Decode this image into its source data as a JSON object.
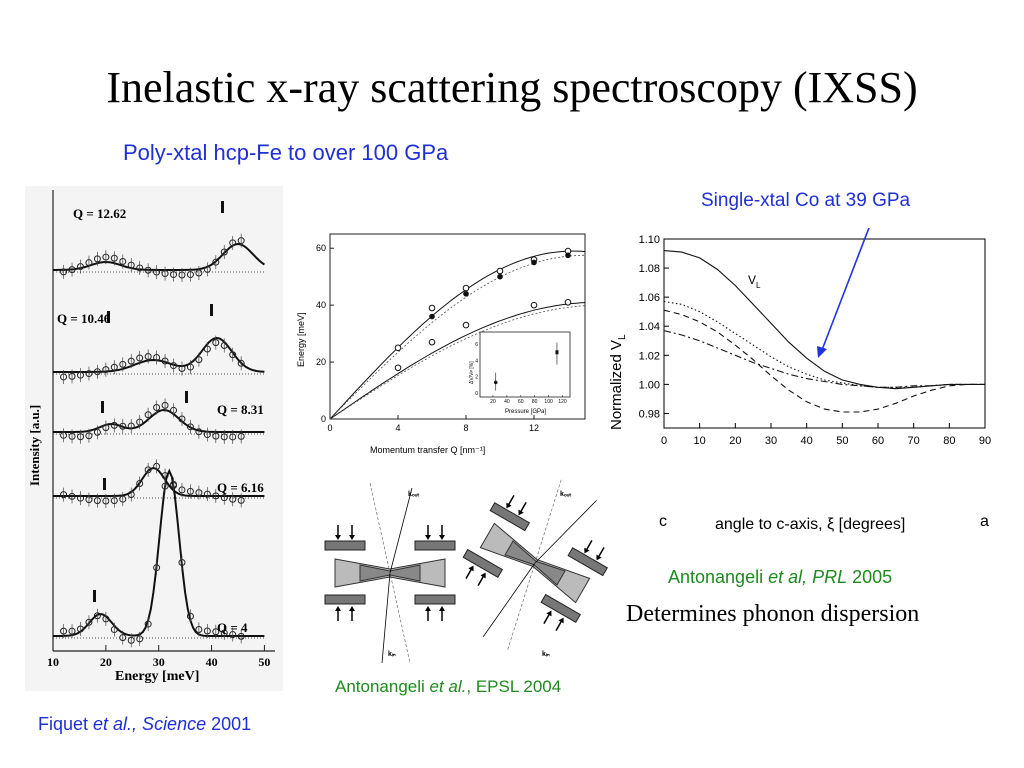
{
  "slide": {
    "title": "Inelastic x-ray scattering spectroscopy (IXSS)",
    "subtitle_fe": "Poly-xtal hcp-Fe to over 100 GPa",
    "label_co": "Single-xtal Co at 39 GPa",
    "ref_fiquet": {
      "a": "Fiquet ",
      "b": "et al., Science",
      "c": " 2001"
    },
    "ref_epsl": {
      "a": "Antonangeli ",
      "b": "et al.",
      "c": ", EPSL 2004"
    },
    "ref_prl": {
      "a": "Antonangeli ",
      "b": "et al, PRL",
      "c": " 2005"
    },
    "conclusion": "Determines phonon dispersion",
    "colors": {
      "blue": "#1f2fd6",
      "green": "#1e8a1e",
      "arrow": "#2233dd"
    }
  },
  "spectra_panel": {
    "ylabel": "Intensity [a.u.]",
    "xlabel": "Energy [meV]",
    "xticks": [
      "10",
      "20",
      "30",
      "40",
      "50"
    ],
    "q_labels": [
      "Q = 12.62",
      "Q = 10.46",
      "Q = 8.31",
      "Q = 6.16",
      "Q = 4"
    ]
  },
  "dispersion_panel": {
    "ylabel": "Energy [meV]",
    "xlabel": "Momentum transfer Q [nm⁻¹]",
    "xticks": [
      "0",
      "4",
      "8",
      "12"
    ],
    "yticks": [
      "0",
      "20",
      "40",
      "60"
    ],
    "inset": {
      "ylabel": "ΔV/Vᴘ [%]",
      "xlabel": "Pressure [GPa]",
      "xticks": [
        "20",
        "40",
        "60",
        "80",
        "100",
        "120"
      ],
      "yticks": [
        "0",
        "2",
        "4",
        "6"
      ]
    }
  },
  "geometry_panel": {
    "labels": {
      "kout": "kₒᵤₜ",
      "kin": "kᵢₙ"
    }
  },
  "chart_data": {
    "type": "line",
    "title": "",
    "xlabel": "angle to c-axis, ξ [degrees]",
    "ylabel": "Normalized V",
    "ylabel_sub": "L",
    "x_end_labels": {
      "left": "c",
      "right": "a"
    },
    "xlim": [
      0,
      90
    ],
    "ylim": [
      0.97,
      1.1
    ],
    "xticks": [
      "0",
      "10",
      "20",
      "30",
      "40",
      "50",
      "60",
      "70",
      "80",
      "90"
    ],
    "yticks": [
      "0.98",
      "1.00",
      "1.02",
      "1.04",
      "1.06",
      "1.08",
      "1.10"
    ],
    "annotation": {
      "text": "V",
      "sub": "L"
    },
    "series": [
      {
        "style": "solid",
        "x": [
          0,
          5,
          10,
          15,
          20,
          25,
          30,
          35,
          40,
          45,
          50,
          55,
          60,
          65,
          70,
          75,
          80,
          85,
          90
        ],
        "y": [
          1.092,
          1.091,
          1.087,
          1.079,
          1.068,
          1.055,
          1.042,
          1.029,
          1.018,
          1.009,
          1.003,
          1.0,
          0.998,
          0.997,
          0.998,
          0.999,
          1.0,
          1.0,
          1.0
        ]
      },
      {
        "style": "dotted",
        "x": [
          0,
          5,
          10,
          15,
          20,
          25,
          30,
          35,
          40,
          45,
          50,
          55,
          60,
          65,
          70,
          75,
          80,
          85,
          90
        ],
        "y": [
          1.057,
          1.055,
          1.05,
          1.043,
          1.035,
          1.027,
          1.019,
          1.012,
          1.007,
          1.003,
          1.001,
          0.999,
          0.998,
          0.998,
          0.998,
          0.999,
          1.0,
          1.0,
          1.0
        ]
      },
      {
        "style": "dashed",
        "x": [
          0,
          5,
          10,
          15,
          20,
          25,
          30,
          35,
          40,
          45,
          50,
          55,
          60,
          65,
          70,
          75,
          80,
          85,
          90
        ],
        "y": [
          1.051,
          1.048,
          1.043,
          1.036,
          1.027,
          1.017,
          1.006,
          0.996,
          0.988,
          0.983,
          0.981,
          0.981,
          0.983,
          0.987,
          0.992,
          0.996,
          0.999,
          1.0,
          1.0
        ]
      },
      {
        "style": "dashdot",
        "x": [
          0,
          5,
          10,
          15,
          20,
          25,
          30,
          35,
          40,
          45,
          50,
          55,
          60,
          65,
          70,
          75,
          80,
          85,
          90
        ],
        "y": [
          1.037,
          1.034,
          1.03,
          1.025,
          1.02,
          1.015,
          1.011,
          1.007,
          1.004,
          1.002,
          1.0,
          0.999,
          0.998,
          0.998,
          0.999,
          0.999,
          1.0,
          1.0,
          1.0
        ]
      }
    ]
  }
}
